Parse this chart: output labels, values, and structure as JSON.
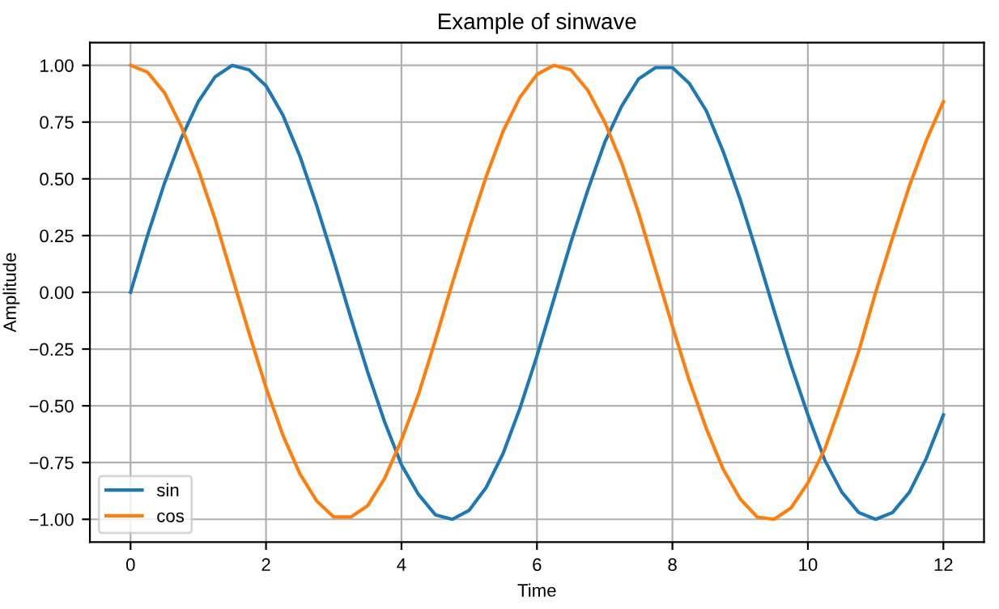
{
  "chart_data": {
    "type": "line",
    "title": "Example of sinwave",
    "xlabel": "Time",
    "ylabel": "Amplitude",
    "x": [
      0,
      0.25,
      0.5,
      0.75,
      1,
      1.25,
      1.5,
      1.75,
      2,
      2.25,
      2.5,
      2.75,
      3,
      3.25,
      3.5,
      3.75,
      4,
      4.25,
      4.5,
      4.75,
      5,
      5.25,
      5.5,
      5.75,
      6,
      6.25,
      6.5,
      6.75,
      7,
      7.25,
      7.5,
      7.75,
      8,
      8.25,
      8.5,
      8.75,
      9,
      9.25,
      9.5,
      9.75,
      10,
      10.25,
      10.5,
      10.75,
      11,
      11.25,
      11.5,
      11.75,
      12
    ],
    "series": [
      {
        "name": "sin",
        "color": "#1f77b4",
        "values": [
          0,
          0.25,
          0.48,
          0.68,
          0.84,
          0.95,
          1.0,
          0.98,
          0.91,
          0.78,
          0.6,
          0.38,
          0.14,
          -0.11,
          -0.35,
          -0.57,
          -0.76,
          -0.89,
          -0.98,
          -1.0,
          -0.96,
          -0.86,
          -0.71,
          -0.51,
          -0.28,
          -0.03,
          0.22,
          0.45,
          0.66,
          0.82,
          0.94,
          0.99,
          0.99,
          0.92,
          0.8,
          0.62,
          0.41,
          0.17,
          -0.08,
          -0.32,
          -0.54,
          -0.74,
          -0.88,
          -0.97,
          -1.0,
          -0.97,
          -0.88,
          -0.73,
          -0.54
        ]
      },
      {
        "name": "cos",
        "color": "#ff7f0e",
        "values": [
          1.0,
          0.97,
          0.88,
          0.73,
          0.54,
          0.32,
          0.07,
          -0.18,
          -0.42,
          -0.63,
          -0.8,
          -0.92,
          -0.99,
          -0.99,
          -0.94,
          -0.82,
          -0.65,
          -0.45,
          -0.21,
          0.04,
          0.28,
          0.51,
          0.71,
          0.86,
          0.96,
          1.0,
          0.98,
          0.89,
          0.75,
          0.57,
          0.35,
          0.1,
          -0.15,
          -0.39,
          -0.6,
          -0.78,
          -0.91,
          -0.99,
          -1.0,
          -0.95,
          -0.84,
          -0.69,
          -0.48,
          -0.26,
          0.0,
          0.24,
          0.47,
          0.67,
          0.84
        ]
      }
    ],
    "xlim": [
      -0.6,
      12.6
    ],
    "ylim": [
      -1.1,
      1.1
    ],
    "xticks": [
      0,
      2,
      4,
      6,
      8,
      10,
      12
    ],
    "yticks": [
      {
        "value": -1,
        "label": "−1.00"
      },
      {
        "value": -0.75,
        "label": "−0.75"
      },
      {
        "value": -0.5,
        "label": "−0.50"
      },
      {
        "value": -0.25,
        "label": "−0.25"
      },
      {
        "value": 0,
        "label": "0.00"
      },
      {
        "value": 0.25,
        "label": "0.25"
      },
      {
        "value": 0.5,
        "label": "0.50"
      },
      {
        "value": 0.75,
        "label": "0.75"
      },
      {
        "value": 1,
        "label": "1.00"
      }
    ],
    "grid": true,
    "legend": "lower left",
    "line_style": "solid",
    "marker": "none"
  }
}
